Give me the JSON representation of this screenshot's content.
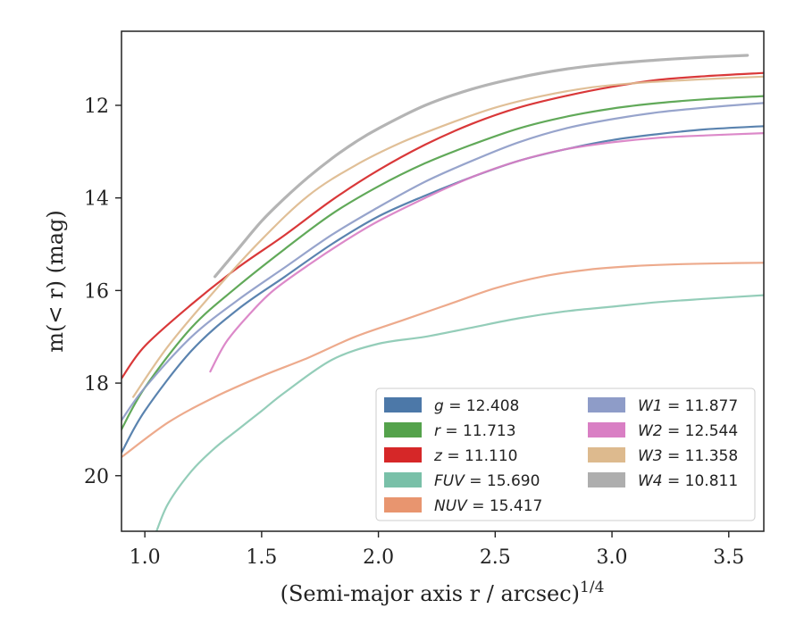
{
  "chart_data": {
    "type": "line",
    "xlabel": "(Semi-major axis r / arcsec)^1/4",
    "ylabel": "m(< r) (mag)",
    "xlim": [
      0.9,
      3.65
    ],
    "ylim": [
      21.2,
      10.4
    ],
    "y_inverted": true,
    "grid": false,
    "legend_position": "lower-right",
    "x_ticks": [
      "1.0",
      "1.5",
      "2.0",
      "2.5",
      "3.0",
      "3.5"
    ],
    "y_ticks": [
      "12",
      "14",
      "16",
      "18",
      "20"
    ],
    "series": [
      {
        "name": "g = 12.408",
        "color": "#4C78A8",
        "x": [
          0.9,
          1.0,
          1.2,
          1.4,
          1.6,
          1.8,
          2.0,
          2.2,
          2.4,
          2.6,
          2.8,
          3.0,
          3.2,
          3.4,
          3.65
        ],
        "y": [
          19.5,
          18.6,
          17.3,
          16.4,
          15.7,
          15.0,
          14.4,
          13.95,
          13.55,
          13.2,
          12.95,
          12.75,
          12.62,
          12.52,
          12.45
        ]
      },
      {
        "name": "r = 11.713",
        "color": "#54A24B",
        "x": [
          0.9,
          1.0,
          1.2,
          1.4,
          1.6,
          1.8,
          2.0,
          2.2,
          2.4,
          2.6,
          2.8,
          3.0,
          3.2,
          3.4,
          3.65
        ],
        "y": [
          19.0,
          18.1,
          16.8,
          15.9,
          15.1,
          14.35,
          13.75,
          13.25,
          12.85,
          12.5,
          12.25,
          12.07,
          11.95,
          11.87,
          11.8
        ]
      },
      {
        "name": "z = 11.110",
        "color": "#D62728",
        "x": [
          0.9,
          1.0,
          1.2,
          1.4,
          1.6,
          1.8,
          2.0,
          2.2,
          2.4,
          2.6,
          2.8,
          3.0,
          3.2,
          3.4,
          3.65
        ],
        "y": [
          17.9,
          17.2,
          16.3,
          15.5,
          14.8,
          14.05,
          13.4,
          12.85,
          12.4,
          12.05,
          11.8,
          11.6,
          11.45,
          11.37,
          11.3
        ]
      },
      {
        "name": "FUV = 15.690",
        "color": "#79C0A8",
        "x": [
          1.05,
          1.1,
          1.2,
          1.3,
          1.4,
          1.5,
          1.6,
          1.8,
          2.0,
          2.2,
          2.4,
          2.6,
          2.8,
          3.0,
          3.2,
          3.4,
          3.65
        ],
        "y": [
          21.2,
          20.6,
          19.9,
          19.4,
          19.0,
          18.6,
          18.2,
          17.5,
          17.15,
          17.0,
          16.8,
          16.6,
          16.45,
          16.35,
          16.25,
          16.18,
          16.1
        ]
      },
      {
        "name": "NUV = 15.417",
        "color": "#E8956F",
        "x": [
          0.9,
          1.1,
          1.3,
          1.5,
          1.7,
          1.9,
          2.1,
          2.3,
          2.5,
          2.7,
          2.9,
          3.1,
          3.3,
          3.5,
          3.65
        ],
        "y": [
          19.6,
          18.85,
          18.3,
          17.85,
          17.45,
          17.0,
          16.65,
          16.3,
          15.95,
          15.7,
          15.55,
          15.47,
          15.43,
          15.41,
          15.4
        ]
      },
      {
        "name": "W1 = 11.877",
        "color": "#8E9CC8",
        "x": [
          0.9,
          1.0,
          1.2,
          1.4,
          1.6,
          1.8,
          2.0,
          2.2,
          2.4,
          2.6,
          2.8,
          3.0,
          3.2,
          3.4,
          3.65
        ],
        "y": [
          18.8,
          18.1,
          17.0,
          16.2,
          15.5,
          14.8,
          14.2,
          13.65,
          13.2,
          12.8,
          12.5,
          12.3,
          12.15,
          12.05,
          11.95
        ]
      },
      {
        "name": "W2 = 12.544",
        "color": "#D97FC4",
        "x": [
          1.28,
          1.35,
          1.45,
          1.55,
          1.7,
          1.85,
          2.0,
          2.2,
          2.4,
          2.6,
          2.8,
          3.0,
          3.2,
          3.4,
          3.65
        ],
        "y": [
          17.75,
          17.1,
          16.5,
          16.0,
          15.45,
          14.95,
          14.5,
          14.0,
          13.55,
          13.2,
          12.95,
          12.8,
          12.7,
          12.65,
          12.6
        ]
      },
      {
        "name": "W3 = 11.358",
        "color": "#DDBA8E",
        "x": [
          0.95,
          1.1,
          1.3,
          1.5,
          1.7,
          1.9,
          2.1,
          2.3,
          2.5,
          2.7,
          2.9,
          3.1,
          3.3,
          3.5,
          3.65
        ],
        "y": [
          18.3,
          17.2,
          16.0,
          14.9,
          13.95,
          13.3,
          12.8,
          12.4,
          12.05,
          11.8,
          11.62,
          11.52,
          11.46,
          11.41,
          11.38
        ]
      },
      {
        "name": "W4 = 10.811",
        "color": "#AEAEAE",
        "x": [
          1.3,
          1.4,
          1.5,
          1.6,
          1.7,
          1.8,
          1.9,
          2.0,
          2.2,
          2.4,
          2.6,
          2.8,
          3.0,
          3.2,
          3.4,
          3.58
        ],
        "y": [
          15.7,
          15.1,
          14.5,
          14.0,
          13.55,
          13.15,
          12.8,
          12.5,
          12.0,
          11.65,
          11.4,
          11.22,
          11.1,
          11.02,
          10.96,
          10.92
        ]
      }
    ]
  }
}
